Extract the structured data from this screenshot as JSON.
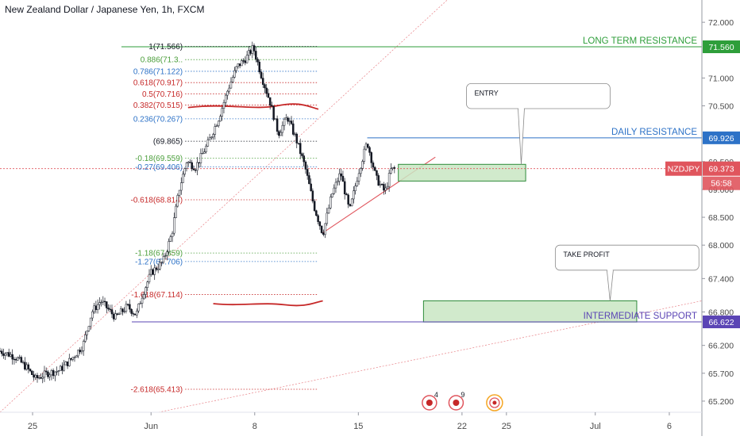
{
  "chart_title": "New Zealand Dollar / Japanese Yen, 1h, FXCM",
  "colors": {
    "resistance": "#2e9e3a",
    "daily": "#2d72c7",
    "support": "#5b45b5",
    "current": "#e0555d",
    "fib_red": "#c62828",
    "fib_green": "#4a9e3a",
    "fib_blue": "#2d72c7",
    "fib_black": "#131722",
    "zone_fill": "#c9e6c3",
    "zone_stroke": "#2e8b3a",
    "trend": "#e0555d",
    "candle": "#131722"
  },
  "chart_data": {
    "type": "candlestick",
    "symbol": "NZDJPY",
    "timeframe": "1h",
    "ylim": [
      65.0,
      72.4
    ],
    "yticks": [
      {
        "label": "72.000",
        "value": 72.0
      },
      {
        "label": "71.000",
        "value": 71.0
      },
      {
        "label": "70.500",
        "value": 70.5
      },
      {
        "label": "69.500",
        "value": 69.5
      },
      {
        "label": "69.000",
        "value": 69.0
      },
      {
        "label": "68.500",
        "value": 68.5
      },
      {
        "label": "68.000",
        "value": 68.0
      },
      {
        "label": "67.400",
        "value": 67.4
      },
      {
        "label": "66.800",
        "value": 66.8
      },
      {
        "label": "66.200",
        "value": 66.2
      },
      {
        "label": "65.700",
        "value": 65.7
      },
      {
        "label": "65.200",
        "value": 65.2
      }
    ],
    "xticks": [
      {
        "label": "25",
        "day": -7
      },
      {
        "label": "Jun",
        "day": 1
      },
      {
        "label": "8",
        "day": 8
      },
      {
        "label": "15",
        "day": 15
      },
      {
        "label": "22",
        "day": 22
      },
      {
        "label": "25",
        "day": 25
      },
      {
        "label": "Jul",
        "day": 31
      },
      {
        "label": "6",
        "day": 36
      }
    ],
    "xlim": [
      -9.2,
      38.2
    ],
    "price_path": [
      [
        -9.2,
        66.1
      ],
      [
        -8.2,
        66.0
      ],
      [
        -7.4,
        65.8
      ],
      [
        -6.8,
        65.6
      ],
      [
        -6.0,
        65.7
      ],
      [
        -5.2,
        65.75
      ],
      [
        -4.4,
        65.95
      ],
      [
        -3.6,
        66.2
      ],
      [
        -3.0,
        66.8
      ],
      [
        -2.4,
        67.0
      ],
      [
        -1.4,
        66.7
      ],
      [
        -0.6,
        66.9
      ],
      [
        0.0,
        66.75
      ],
      [
        0.4,
        67.1
      ],
      [
        1.0,
        67.5
      ],
      [
        1.8,
        67.7
      ],
      [
        2.4,
        68.2
      ],
      [
        2.9,
        69.0
      ],
      [
        3.4,
        69.5
      ],
      [
        4.0,
        69.4
      ],
      [
        4.8,
        69.8
      ],
      [
        5.6,
        70.3
      ],
      [
        6.2,
        70.8
      ],
      [
        6.8,
        71.2
      ],
      [
        7.4,
        71.35
      ],
      [
        7.9,
        71.55
      ],
      [
        8.5,
        71.0
      ],
      [
        9.0,
        70.6
      ],
      [
        9.6,
        70.0
      ],
      [
        10.2,
        70.3
      ],
      [
        10.8,
        69.9
      ],
      [
        11.4,
        69.4
      ],
      [
        12.0,
        68.7
      ],
      [
        12.6,
        68.2
      ],
      [
        13.2,
        68.9
      ],
      [
        13.8,
        69.3
      ],
      [
        14.4,
        68.6
      ],
      [
        15.0,
        69.3
      ],
      [
        15.6,
        69.85
      ],
      [
        16.2,
        69.2
      ],
      [
        16.8,
        68.95
      ],
      [
        17.2,
        69.35
      ],
      [
        17.5,
        69.37
      ]
    ],
    "current_price": {
      "symbol": "NZDJPY",
      "value": 69.373,
      "label": "69.373",
      "countdown": "56:58"
    },
    "levels": [
      {
        "name": "LONG TERM RESISTANCE",
        "value": 71.56,
        "label": "71.560",
        "color": "#2e9e3a",
        "from_day": -1.0
      },
      {
        "name": "DAILY RESISTANCE",
        "value": 69.926,
        "label": "69.926",
        "color": "#2d72c7",
        "from_day": 15.6
      },
      {
        "name": "INTERMEDIATE SUPPORT",
        "value": 66.622,
        "label": "66.622",
        "color": "#5b45b5",
        "from_day": -0.3
      }
    ],
    "fibonacci": [
      {
        "ratio": "1",
        "price": "71.566",
        "text": "1(71.566)",
        "value": 71.566,
        "color": "#131722"
      },
      {
        "ratio": "0.886",
        "price": "71.3..",
        "text": "0.886(71.3..",
        "value": 71.33,
        "color": "#4a9e3a"
      },
      {
        "ratio": "0.786",
        "price": "71.122",
        "text": "0.786(71.122)",
        "value": 71.12,
        "color": "#2d72c7"
      },
      {
        "ratio": "0.618",
        "price": "70.917",
        "text": "0.618(70.917)",
        "value": 70.917,
        "color": "#c62828"
      },
      {
        "ratio": "0.5",
        "price": "70.716",
        "text": "0.5(70.716)",
        "value": 70.716,
        "color": "#c62828"
      },
      {
        "ratio": "0.382",
        "price": "70.515",
        "text": "0.382(70.515)",
        "value": 70.515,
        "color": "#c62828"
      },
      {
        "ratio": "0.236",
        "price": "70.267",
        "text": "0.236(70.267)",
        "value": 70.267,
        "color": "#2d72c7"
      },
      {
        "ratio": "0",
        "price": "69.865",
        "text": "(69.865)",
        "value": 69.865,
        "color": "#131722"
      },
      {
        "ratio": "-0.18",
        "price": "69.559",
        "text": "-0.18(69.559)",
        "value": 69.559,
        "color": "#4a9e3a"
      },
      {
        "ratio": "-0.27",
        "price": "69.406",
        "text": "-0.27(69.406)",
        "value": 69.406,
        "color": "#2d72c7"
      },
      {
        "ratio": "-0.618",
        "price": "68.814",
        "text": "-0.618(68.814)",
        "value": 68.814,
        "color": "#c62828"
      },
      {
        "ratio": "-1.18",
        "price": "67.859",
        "text": "-1.18(67.859)",
        "value": 67.859,
        "color": "#4a9e3a"
      },
      {
        "ratio": "-1.27",
        "price": "67.706",
        "text": "-1.27(67.706)",
        "value": 67.706,
        "color": "#2d72c7"
      },
      {
        "ratio": "-1.618",
        "price": "67.114",
        "text": "-1.618(67.114)",
        "value": 67.114,
        "color": "#c62828"
      },
      {
        "ratio": "-2.618",
        "price": "65.413",
        "text": "-2.618(65.413)",
        "value": 65.413,
        "color": "#c62828"
      }
    ],
    "fib_line_from_day": 3.3,
    "fib_line_to_day": 12.3,
    "zones": [
      {
        "name": "entry-zone",
        "from_day": 17.7,
        "to_day": 26.3,
        "top": 69.45,
        "bottom": 69.15
      },
      {
        "name": "take-profit-zone",
        "from_day": 19.4,
        "to_day": 33.8,
        "top": 67.0,
        "bottom": 66.62
      }
    ],
    "callouts": [
      {
        "name": "entry-callout",
        "text": "ENTRY",
        "box_from_day": 22.3,
        "box_to_day": 32.0,
        "box_top": 70.9,
        "box_bottom": 70.45,
        "pointer_day": 26.0,
        "pointer_value": 69.45
      },
      {
        "name": "take-profit-callout",
        "text": "TAKE PROFIT",
        "box_from_day": 28.3,
        "box_to_day": 38.0,
        "box_top": 68.0,
        "box_bottom": 67.55,
        "pointer_day": 32.0,
        "pointer_value": 67.0
      }
    ],
    "trendlines": [
      {
        "name": "long-term-trendline",
        "from": [
          -9.2,
          65.0
        ],
        "to": [
          21.0,
          72.4
        ],
        "dashed": true
      },
      {
        "name": "lower-trendline",
        "from": [
          1.5,
          65.0
        ],
        "to": [
          38.2,
          67.0
        ],
        "dashed": true
      },
      {
        "name": "short-term-trendline",
        "from": [
          12.6,
          68.22
        ],
        "to": [
          20.2,
          69.58
        ],
        "dashed": false
      }
    ],
    "event_icons": [
      {
        "name": "event-flag-icon-4",
        "day": 19.8,
        "badge": "4"
      },
      {
        "name": "event-flag-icon-9",
        "day": 21.6,
        "badge": "9"
      },
      {
        "name": "event-target-icon",
        "day": 24.2,
        "badge": ""
      }
    ]
  }
}
